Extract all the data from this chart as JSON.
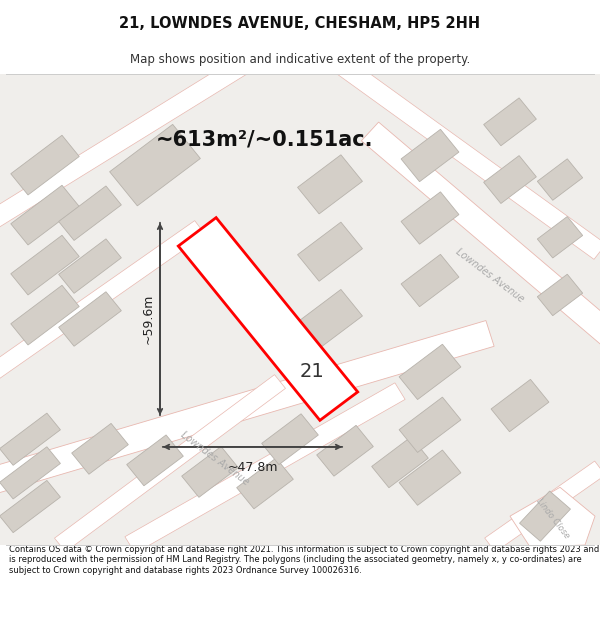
{
  "title": "21, LOWNDES AVENUE, CHESHAM, HP5 2HH",
  "subtitle": "Map shows position and indicative extent of the property.",
  "area_label": "~613m²/~0.151ac.",
  "width_label": "~47.8m",
  "height_label": "~59.6m",
  "number_label": "21",
  "footer": "Contains OS data © Crown copyright and database right 2021. This information is subject to Crown copyright and database rights 2023 and is reproduced with the permission of HM Land Registry. The polygons (including the associated geometry, namely x, y co-ordinates) are subject to Crown copyright and database rights 2023 Ordnance Survey 100026316.",
  "map_bg": "#f0eeeb",
  "road_color": "#ffffff",
  "road_outline": "#e8b8b0",
  "building_color": "#d4cfc8",
  "building_outline": "#b8b3ac",
  "plot_fill": "none",
  "plot_outline": "#ff0000",
  "dim_color": "#444444",
  "text_color": "#333333",
  "road_label_color": "#aaaaaa",
  "ang": -38
}
